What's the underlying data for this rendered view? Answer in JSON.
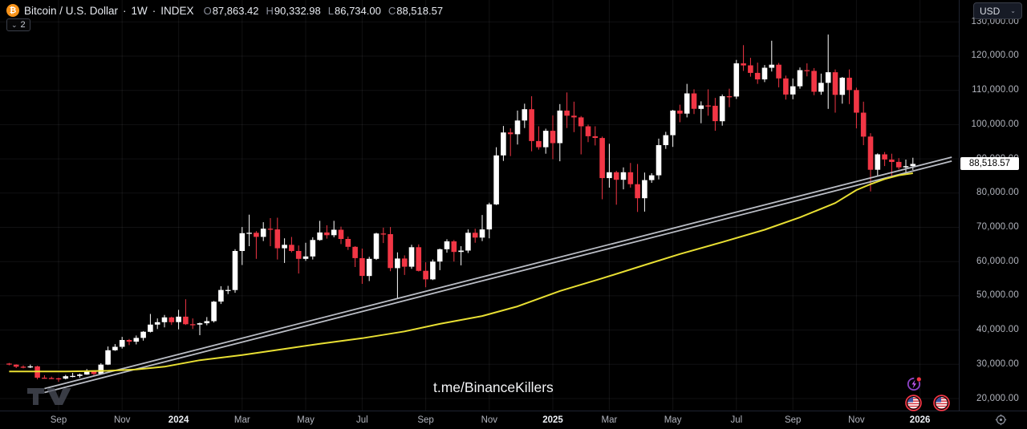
{
  "header": {
    "symbol": "Bitcoin / U.S. Dollar",
    "dot": "·",
    "timeframe": "1W",
    "market": "INDEX",
    "logo_glyph": "₿",
    "ohlc": {
      "o_label": "O",
      "o": "87,863.42",
      "h_label": "H",
      "h": "90,332.98",
      "l_label": "L",
      "l": "86,734.00",
      "c_label": "C",
      "c": "88,518.57"
    }
  },
  "legend_toggle": {
    "chevron": "⌄",
    "count": "2"
  },
  "top_right": {
    "currency": "USD",
    "chevron": "⌄"
  },
  "watermark": {
    "text": "t.me/BinanceKillers"
  },
  "price_axis": {
    "labels": [
      {
        "text": "130,000.00",
        "value": 130000
      },
      {
        "text": "120,000.00",
        "value": 120000
      },
      {
        "text": "110,000.00",
        "value": 110000
      },
      {
        "text": "100,000.00",
        "value": 100000
      },
      {
        "text": "90,000.00",
        "value": 90000
      },
      {
        "text": "80,000.00",
        "value": 80000
      },
      {
        "text": "70,000.00",
        "value": 70000
      },
      {
        "text": "60,000.00",
        "value": 60000
      },
      {
        "text": "50,000.00",
        "value": 50000
      },
      {
        "text": "40,000.00",
        "value": 40000
      },
      {
        "text": "30,000.00",
        "value": 30000
      },
      {
        "text": "20,000.00",
        "value": 20000
      }
    ],
    "last_price": "88,518.57",
    "last_price_value": 88518.57
  },
  "time_axis": {
    "ticks": [
      {
        "label": "Sep",
        "week_index": 7,
        "is_year": false
      },
      {
        "label": "Nov",
        "week_index": 16,
        "is_year": false
      },
      {
        "label": "2024",
        "week_index": 24,
        "is_year": true
      },
      {
        "label": "Mar",
        "week_index": 33,
        "is_year": false
      },
      {
        "label": "May",
        "week_index": 42,
        "is_year": false
      },
      {
        "label": "Jul",
        "week_index": 50,
        "is_year": false
      },
      {
        "label": "Sep",
        "week_index": 59,
        "is_year": false
      },
      {
        "label": "Nov",
        "week_index": 68,
        "is_year": false
      },
      {
        "label": "2025",
        "week_index": 77,
        "is_year": true
      },
      {
        "label": "Mar",
        "week_index": 85,
        "is_year": false
      },
      {
        "label": "May",
        "week_index": 94,
        "is_year": false
      },
      {
        "label": "Jul",
        "week_index": 103,
        "is_year": false
      },
      {
        "label": "Sep",
        "week_index": 111,
        "is_year": false
      },
      {
        "label": "Nov",
        "week_index": 120,
        "is_year": false
      },
      {
        "label": "2026",
        "week_index": 129,
        "is_year": true
      }
    ]
  },
  "chart_data": {
    "type": "candlestick",
    "title": "Bitcoin / U.S. Dollar · 1W · INDEX",
    "interval": "1W",
    "x_axis": {
      "start_date": "2023-07-17",
      "interval_days": 7
    },
    "ylim": [
      16500,
      133500
    ],
    "grid": true,
    "colors": {
      "up": "#ffffff",
      "down": "#f23645",
      "background": "#000000",
      "grid": "rgba(240,243,250,0.07)",
      "ma": "#e8df33",
      "channel": "#b9bcc4"
    },
    "candles": [
      [
        30200,
        30400,
        29700,
        29900
      ],
      [
        29900,
        30000,
        28900,
        29300
      ],
      [
        29300,
        29700,
        28800,
        29100
      ],
      [
        29100,
        29900,
        28900,
        29400
      ],
      [
        29400,
        29600,
        25600,
        26100
      ],
      [
        26100,
        26800,
        25800,
        26000
      ],
      [
        26000,
        26400,
        25700,
        25900
      ],
      [
        25900,
        26100,
        24900,
        25800
      ],
      [
        25800,
        26900,
        25600,
        26500
      ],
      [
        26500,
        27500,
        26200,
        26600
      ],
      [
        26600,
        27300,
        26100,
        27000
      ],
      [
        27000,
        28600,
        26900,
        27900
      ],
      [
        27900,
        28000,
        26600,
        27200
      ],
      [
        27200,
        30300,
        27100,
        29900
      ],
      [
        29900,
        35200,
        29800,
        34100
      ],
      [
        34100,
        35900,
        33900,
        35100
      ],
      [
        35100,
        38000,
        34600,
        37100
      ],
      [
        37100,
        37400,
        35600,
        36600
      ],
      [
        36600,
        38400,
        35800,
        37700
      ],
      [
        37700,
        39700,
        36900,
        39500
      ],
      [
        39500,
        44700,
        39300,
        41600
      ],
      [
        41600,
        43400,
        40300,
        42300
      ],
      [
        42300,
        44400,
        40800,
        43700
      ],
      [
        43700,
        43900,
        41500,
        42300
      ],
      [
        42300,
        45900,
        40200,
        43900
      ],
      [
        43900,
        49000,
        41500,
        41700
      ],
      [
        41700,
        43400,
        40300,
        41600
      ],
      [
        41600,
        42200,
        38500,
        42000
      ],
      [
        42000,
        43800,
        41400,
        42600
      ],
      [
        42600,
        48500,
        42200,
        48300
      ],
      [
        48300,
        52800,
        47600,
        51700
      ],
      [
        51700,
        52900,
        50500,
        51700
      ],
      [
        51700,
        63600,
        50900,
        63100
      ],
      [
        63100,
        70100,
        59000,
        68300
      ],
      [
        68300,
        73700,
        64500,
        68400
      ],
      [
        68400,
        68900,
        60800,
        67200
      ],
      [
        67200,
        71500,
        66000,
        69600
      ],
      [
        69600,
        72700,
        64500,
        69400
      ],
      [
        69400,
        72800,
        60600,
        63900
      ],
      [
        63900,
        66800,
        59600,
        64900
      ],
      [
        64900,
        67200,
        62700,
        63100
      ],
      [
        63100,
        64700,
        56500,
        60800
      ],
      [
        60800,
        65500,
        60200,
        61500
      ],
      [
        61500,
        67100,
        60600,
        66300
      ],
      [
        66300,
        71900,
        66100,
        68500
      ],
      [
        68500,
        70600,
        66700,
        67700
      ],
      [
        67700,
        71900,
        67100,
        69300
      ],
      [
        69300,
        70200,
        65100,
        66600
      ],
      [
        66600,
        67300,
        63400,
        64300
      ],
      [
        64300,
        64500,
        58400,
        61000
      ],
      [
        61000,
        63800,
        53500,
        55800
      ],
      [
        55800,
        61400,
        54300,
        60800
      ],
      [
        60800,
        68400,
        60500,
        68200
      ],
      [
        68200,
        69900,
        65400,
        68000
      ],
      [
        68000,
        70100,
        57200,
        58100
      ],
      [
        58100,
        62700,
        49100,
        60900
      ],
      [
        60900,
        61800,
        56100,
        58500
      ],
      [
        58500,
        64900,
        57900,
        64200
      ],
      [
        64200,
        65000,
        57100,
        57300
      ],
      [
        57300,
        59800,
        52500,
        54800
      ],
      [
        54800,
        60600,
        54600,
        60000
      ],
      [
        60000,
        63800,
        57500,
        63600
      ],
      [
        63600,
        66500,
        62600,
        65900
      ],
      [
        65900,
        66300,
        60000,
        62800
      ],
      [
        62800,
        64500,
        58900,
        63200
      ],
      [
        63200,
        69400,
        62500,
        68400
      ],
      [
        68400,
        69600,
        65500,
        67000
      ],
      [
        67000,
        73600,
        66000,
        69400
      ],
      [
        69400,
        77200,
        66800,
        76700
      ],
      [
        76700,
        93400,
        76500,
        91000
      ],
      [
        91000,
        99600,
        89400,
        97700
      ],
      [
        97700,
        98900,
        90800,
        97200
      ],
      [
        97200,
        104100,
        94200,
        101200
      ],
      [
        101200,
        106100,
        99000,
        104500
      ],
      [
        104500,
        108300,
        92200,
        95200
      ],
      [
        95200,
        99500,
        92700,
        93400
      ],
      [
        93400,
        98800,
        91500,
        98200
      ],
      [
        98200,
        102700,
        89900,
        94600
      ],
      [
        94600,
        106000,
        89300,
        104100
      ],
      [
        104100,
        109400,
        99000,
        102600
      ],
      [
        102600,
        106700,
        97800,
        102100
      ],
      [
        102100,
        102500,
        91300,
        99500
      ],
      [
        99500,
        100000,
        94900,
        96600
      ],
      [
        96600,
        99500,
        93900,
        96100
      ],
      [
        96100,
        96500,
        78200,
        84400
      ],
      [
        84400,
        94400,
        81600,
        86100
      ],
      [
        86100,
        86500,
        76600,
        83900
      ],
      [
        83900,
        87500,
        81100,
        86100
      ],
      [
        86100,
        88800,
        81600,
        82600
      ],
      [
        82600,
        88500,
        74500,
        78500
      ],
      [
        78500,
        86000,
        74600,
        83800
      ],
      [
        83800,
        85800,
        83000,
        85200
      ],
      [
        85200,
        95900,
        84000,
        94000
      ],
      [
        94000,
        97900,
        92900,
        96900
      ],
      [
        96900,
        104300,
        93500,
        104100
      ],
      [
        104100,
        105800,
        100700,
        103200
      ],
      [
        103200,
        111900,
        102100,
        109100
      ],
      [
        109100,
        110300,
        103100,
        104600
      ],
      [
        104600,
        106800,
        100400,
        105600
      ],
      [
        105600,
        110300,
        102600,
        105500
      ],
      [
        105500,
        107800,
        98200,
        101000
      ],
      [
        101000,
        108800,
        99700,
        108300
      ],
      [
        108300,
        110500,
        105100,
        108200
      ],
      [
        108200,
        118900,
        107500,
        117900
      ],
      [
        117900,
        123200,
        115700,
        117300
      ],
      [
        117300,
        119500,
        114000,
        115100
      ],
      [
        115100,
        118100,
        111900,
        113200
      ],
      [
        113200,
        117400,
        112400,
        116600
      ],
      [
        116600,
        124500,
        115500,
        117500
      ],
      [
        117500,
        118000,
        110900,
        113500
      ],
      [
        113500,
        114300,
        107300,
        108800
      ],
      [
        108800,
        113500,
        107400,
        111200
      ],
      [
        111200,
        116700,
        110500,
        115900
      ],
      [
        115900,
        117900,
        114100,
        115700
      ],
      [
        115700,
        116500,
        108600,
        109600
      ],
      [
        109600,
        114900,
        108700,
        112200
      ],
      [
        112200,
        126300,
        104600,
        115300
      ],
      [
        115300,
        116100,
        103500,
        108700
      ],
      [
        108700,
        113900,
        106100,
        113700
      ],
      [
        113700,
        116100,
        106000,
        110100
      ],
      [
        110100,
        110800,
        98900,
        103500
      ],
      [
        103500,
        106700,
        94000,
        96500
      ],
      [
        96500,
        97500,
        80500,
        86800
      ],
      [
        86800,
        91600,
        85100,
        91300
      ],
      [
        91300,
        92000,
        87900,
        89800
      ],
      [
        89800,
        91500,
        84700,
        89100
      ],
      [
        89100,
        90200,
        86900,
        87500
      ],
      [
        87500,
        89800,
        85900,
        87860
      ],
      [
        87863,
        90333,
        86734,
        88519
      ]
    ],
    "ma_line": {
      "name": "moving-average",
      "color": "#e8df33",
      "points": [
        [
          0,
          27900
        ],
        [
          8,
          27900
        ],
        [
          14,
          28100
        ],
        [
          18,
          28500
        ],
        [
          22,
          29300
        ],
        [
          27,
          31200
        ],
        [
          33,
          32700
        ],
        [
          39,
          34500
        ],
        [
          44,
          36000
        ],
        [
          50,
          37600
        ],
        [
          56,
          39600
        ],
        [
          61,
          41800
        ],
        [
          67,
          44100
        ],
        [
          72,
          46900
        ],
        [
          78,
          51400
        ],
        [
          84,
          55100
        ],
        [
          90,
          59000
        ],
        [
          95,
          62200
        ],
        [
          101,
          65700
        ],
        [
          107,
          69300
        ],
        [
          112,
          72900
        ],
        [
          117,
          77100
        ],
        [
          120,
          80900
        ],
        [
          122,
          82600
        ],
        [
          124,
          84100
        ],
        [
          126,
          85200
        ],
        [
          128,
          85800
        ]
      ]
    },
    "trend_channel": {
      "color": "#b9bcc4",
      "lines": [
        {
          "from": [
            5,
            22900
          ],
          "to": [
            133.5,
            90500
          ]
        },
        {
          "from": [
            5,
            21750
          ],
          "to": [
            133.5,
            89350
          ]
        }
      ]
    }
  },
  "bottom_icons": {
    "flash_event": "flash-event",
    "us_event_1": "us-economic-event",
    "us_event_2": "us-economic-event",
    "axis_settings": "axis-settings"
  }
}
